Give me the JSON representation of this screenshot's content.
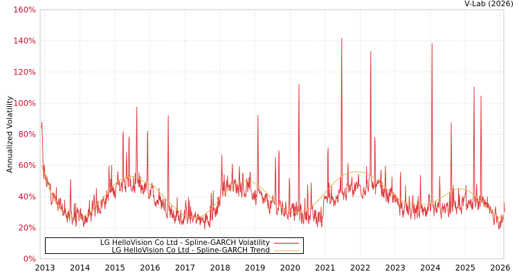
{
  "credit": "V-Lab (2026)",
  "chart_data": {
    "type": "line",
    "title": "",
    "xlabel": "",
    "ylabel": "Annualized Volatility",
    "ylim": [
      0,
      160
    ],
    "xlim": [
      2012.9,
      2026.15
    ],
    "grid": true,
    "legend_position": "bottom-left",
    "y_ticks": [
      "0%",
      "20%",
      "40%",
      "60%",
      "80%",
      "100%",
      "120%",
      "140%",
      "160%"
    ],
    "y_tick_values": [
      0,
      20,
      40,
      60,
      80,
      100,
      120,
      140,
      160
    ],
    "x_ticks": [
      "2013",
      "2014",
      "2015",
      "2016",
      "2017",
      "2018",
      "2019",
      "2020",
      "2021",
      "2022",
      "2023",
      "2024",
      "2025",
      "2026"
    ],
    "x_tick_values": [
      2013,
      2014,
      2015,
      2016,
      2017,
      2018,
      2019,
      2020,
      2021,
      2022,
      2023,
      2024,
      2025,
      2026
    ],
    "series": [
      {
        "name": "LG HelloVision Co Ltd - Spline-GARCH Volatility",
        "color": "#d7191c",
        "base_points": [
          [
            2012.9,
            82
          ],
          [
            2012.95,
            55
          ],
          [
            2013.1,
            45
          ],
          [
            2013.3,
            36
          ],
          [
            2013.5,
            30
          ],
          [
            2013.7,
            27
          ],
          [
            2013.9,
            25
          ],
          [
            2014.1,
            24
          ],
          [
            2014.3,
            27
          ],
          [
            2014.5,
            32
          ],
          [
            2014.7,
            37
          ],
          [
            2014.9,
            42
          ],
          [
            2015.1,
            44
          ],
          [
            2015.3,
            47
          ],
          [
            2015.5,
            46
          ],
          [
            2015.7,
            45
          ],
          [
            2015.9,
            44
          ],
          [
            2016.1,
            40
          ],
          [
            2016.3,
            35
          ],
          [
            2016.5,
            33
          ],
          [
            2016.7,
            26
          ],
          [
            2016.9,
            25
          ],
          [
            2017.1,
            27
          ],
          [
            2017.3,
            25
          ],
          [
            2017.5,
            23
          ],
          [
            2017.7,
            27
          ],
          [
            2017.9,
            30
          ],
          [
            2018.1,
            45
          ],
          [
            2018.3,
            47
          ],
          [
            2018.5,
            45
          ],
          [
            2018.7,
            44
          ],
          [
            2018.9,
            42
          ],
          [
            2019.1,
            38
          ],
          [
            2019.3,
            35
          ],
          [
            2019.5,
            33
          ],
          [
            2019.7,
            31
          ],
          [
            2019.9,
            30
          ],
          [
            2020.1,
            30
          ],
          [
            2020.3,
            28
          ],
          [
            2020.5,
            26
          ],
          [
            2020.7,
            25
          ],
          [
            2020.9,
            26
          ],
          [
            2021.0,
            40
          ],
          [
            2021.2,
            34
          ],
          [
            2021.4,
            38
          ],
          [
            2021.6,
            42
          ],
          [
            2021.8,
            45
          ],
          [
            2022.0,
            44
          ],
          [
            2022.2,
            47
          ],
          [
            2022.4,
            45
          ],
          [
            2022.6,
            43
          ],
          [
            2022.8,
            40
          ],
          [
            2023.0,
            36
          ],
          [
            2023.2,
            32
          ],
          [
            2023.4,
            29
          ],
          [
            2023.6,
            28
          ],
          [
            2023.8,
            27
          ],
          [
            2024.0,
            28
          ],
          [
            2024.2,
            29
          ],
          [
            2024.4,
            30
          ],
          [
            2024.6,
            31
          ],
          [
            2024.8,
            34
          ],
          [
            2025.0,
            35
          ],
          [
            2025.2,
            34
          ],
          [
            2025.4,
            33
          ],
          [
            2025.6,
            30
          ],
          [
            2025.8,
            27
          ],
          [
            2026.0,
            24
          ],
          [
            2026.1,
            22
          ],
          [
            2026.13,
            28
          ]
        ],
        "spikes": [
          [
            2012.92,
            83
          ],
          [
            2012.98,
            62
          ],
          [
            2013.73,
            53
          ],
          [
            2014.4,
            43
          ],
          [
            2014.83,
            62
          ],
          [
            2015.08,
            58
          ],
          [
            2015.23,
            91
          ],
          [
            2015.33,
            70
          ],
          [
            2015.4,
            87
          ],
          [
            2015.62,
            102
          ],
          [
            2015.93,
            90
          ],
          [
            2016.52,
            94
          ],
          [
            2017.75,
            44
          ],
          [
            2018.05,
            67
          ],
          [
            2018.35,
            63
          ],
          [
            2018.55,
            60
          ],
          [
            2018.65,
            58
          ],
          [
            2019.08,
            93
          ],
          [
            2019.58,
            67
          ],
          [
            2019.68,
            80
          ],
          [
            2019.98,
            54
          ],
          [
            2020.25,
            122
          ],
          [
            2020.5,
            50
          ],
          [
            2020.6,
            51
          ],
          [
            2021.08,
            79
          ],
          [
            2021.47,
            148
          ],
          [
            2021.65,
            62
          ],
          [
            2021.95,
            56
          ],
          [
            2022.3,
            147
          ],
          [
            2022.42,
            86
          ],
          [
            2022.72,
            61
          ],
          [
            2023.15,
            60
          ],
          [
            2023.5,
            43
          ],
          [
            2023.72,
            54
          ],
          [
            2023.97,
            45
          ],
          [
            2024.05,
            144
          ],
          [
            2024.27,
            55
          ],
          [
            2024.6,
            90
          ],
          [
            2025.25,
            115
          ],
          [
            2025.45,
            106
          ]
        ]
      },
      {
        "name": "LG HelloVision Co Ltd - Spline-GARCH Trend",
        "color": "#e0b850",
        "points": [
          [
            2012.9,
            60
          ],
          [
            2013.1,
            46
          ],
          [
            2013.3,
            36
          ],
          [
            2013.5,
            30
          ],
          [
            2013.7,
            27
          ],
          [
            2013.9,
            26
          ],
          [
            2014.1,
            27
          ],
          [
            2014.3,
            30
          ],
          [
            2014.5,
            35
          ],
          [
            2014.7,
            40
          ],
          [
            2014.9,
            46
          ],
          [
            2015.1,
            50
          ],
          [
            2015.3,
            52.5
          ],
          [
            2015.5,
            53
          ],
          [
            2015.7,
            51
          ],
          [
            2015.9,
            48.5
          ],
          [
            2016.1,
            47
          ],
          [
            2016.3,
            42
          ],
          [
            2016.5,
            37
          ],
          [
            2016.7,
            33
          ],
          [
            2016.9,
            29
          ],
          [
            2017.1,
            27
          ],
          [
            2017.3,
            26.5
          ],
          [
            2017.5,
            27.5
          ],
          [
            2017.7,
            31
          ],
          [
            2017.9,
            36
          ],
          [
            2018.1,
            41
          ],
          [
            2018.3,
            46
          ],
          [
            2018.5,
            49
          ],
          [
            2018.7,
            50
          ],
          [
            2018.9,
            49.5
          ],
          [
            2019.1,
            47
          ],
          [
            2019.3,
            43
          ],
          [
            2019.5,
            38
          ],
          [
            2019.7,
            34
          ],
          [
            2019.9,
            31
          ],
          [
            2020.1,
            30
          ],
          [
            2020.3,
            30
          ],
          [
            2020.5,
            31.5
          ],
          [
            2020.7,
            35
          ],
          [
            2020.9,
            40
          ],
          [
            2021.1,
            45
          ],
          [
            2021.3,
            50
          ],
          [
            2021.5,
            53.5
          ],
          [
            2021.7,
            55.5
          ],
          [
            2021.9,
            56
          ],
          [
            2022.1,
            55.5
          ],
          [
            2022.3,
            53.5
          ],
          [
            2022.5,
            50
          ],
          [
            2022.7,
            46
          ],
          [
            2022.9,
            42
          ],
          [
            2023.1,
            38.5
          ],
          [
            2023.3,
            36
          ],
          [
            2023.5,
            35
          ],
          [
            2023.7,
            34.5
          ],
          [
            2023.9,
            35
          ],
          [
            2024.1,
            36.5
          ],
          [
            2024.3,
            39
          ],
          [
            2024.5,
            42
          ],
          [
            2024.7,
            44.5
          ],
          [
            2024.9,
            45
          ],
          [
            2025.1,
            43.5
          ],
          [
            2025.3,
            40
          ],
          [
            2025.5,
            35.5
          ],
          [
            2025.7,
            31
          ],
          [
            2025.9,
            27.5
          ],
          [
            2026.1,
            25
          ],
          [
            2026.13,
            24.5
          ]
        ]
      }
    ]
  },
  "legend": {
    "items": [
      {
        "label": "LG HelloVision Co Ltd - Spline-GARCH Volatility",
        "color": "#d7191c"
      },
      {
        "label": "LG HelloVision Co Ltd - Spline-GARCH Trend",
        "color": "#e0b850"
      }
    ]
  },
  "colors": {
    "axis": "#c8c8c8",
    "grid": "#c8c8c8",
    "ytick_label": "#c8102e",
    "xtick_label": "#000000"
  }
}
